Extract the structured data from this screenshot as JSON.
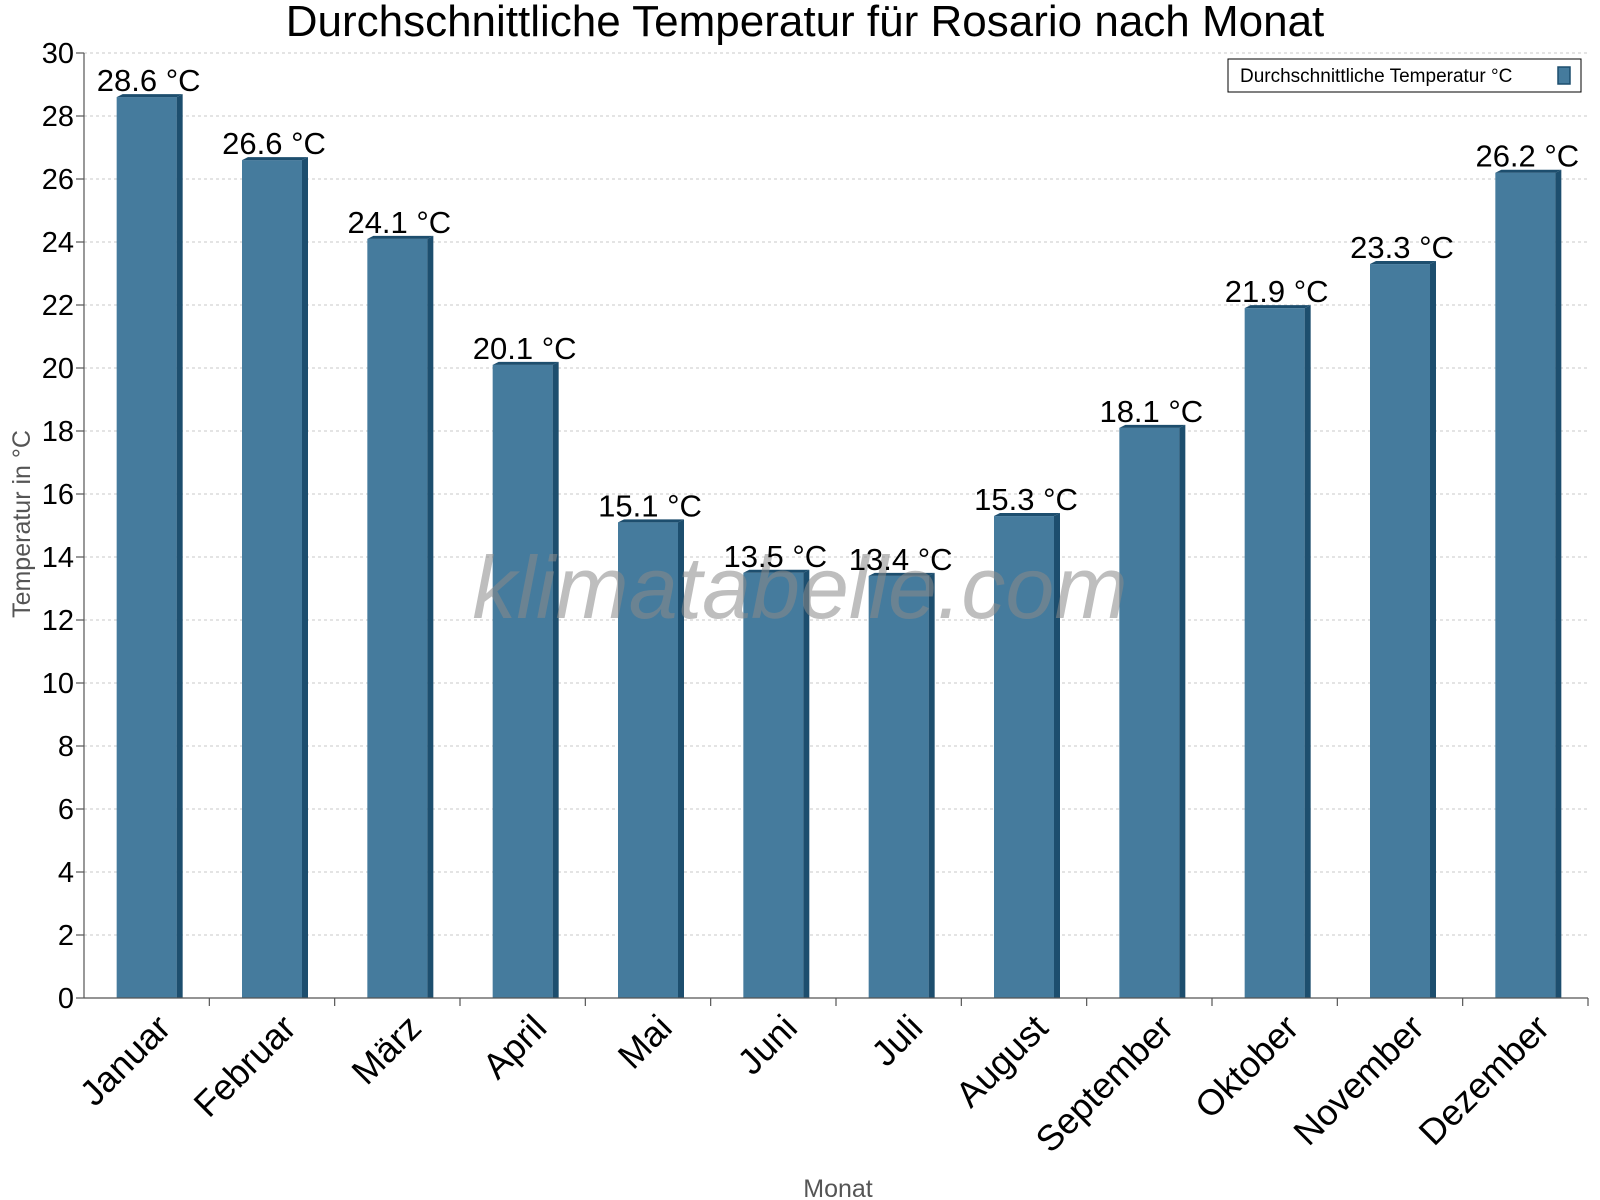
{
  "chart_data": {
    "type": "bar",
    "title": "Durchschnittliche Temperatur für Rosario nach Monat",
    "xlabel": "Monat",
    "ylabel": "Temperatur in °C",
    "ylim": [
      0,
      30
    ],
    "ytick_step": 2,
    "grid": true,
    "legend_position": "top-right",
    "categories": [
      "Januar",
      "Februar",
      "März",
      "April",
      "Mai",
      "Juni",
      "Juli",
      "August",
      "September",
      "Oktober",
      "November",
      "Dezember"
    ],
    "series": [
      {
        "name": "Durchschnittliche Temperatur °C",
        "color": "#457b9d",
        "edge_color": "#1d4e6e",
        "values": [
          28.6,
          26.6,
          24.1,
          20.1,
          15.1,
          13.5,
          13.4,
          15.3,
          18.1,
          21.9,
          23.3,
          26.2
        ],
        "value_labels": [
          "28.6 °C",
          "26.6 °C",
          "24.1 °C",
          "20.1 °C",
          "15.1 °C",
          "13.5 °C",
          "13.4 °C",
          "15.3 °C",
          "18.1 °C",
          "21.9 °C",
          "23.3 °C",
          "26.2 °C"
        ]
      }
    ],
    "watermark": "klimatabelle.com"
  }
}
